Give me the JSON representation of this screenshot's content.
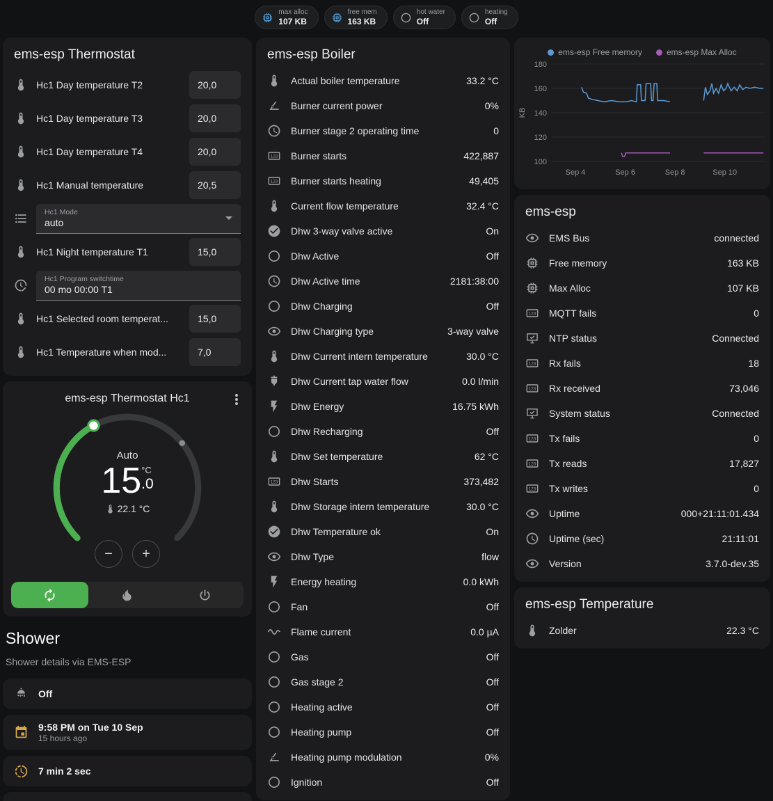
{
  "theme": {
    "accent": "#4caf50",
    "card_bg": "#1c1c1e"
  },
  "badges": [
    {
      "icon": "memory",
      "icon_class": "ic-blue",
      "label": "max alloc",
      "value": "107 KB"
    },
    {
      "icon": "memory",
      "icon_class": "ic-blue",
      "label": "free mem",
      "value": "163 KB"
    },
    {
      "icon": "circle",
      "icon_class": "",
      "label": "hot water",
      "value": "Off"
    },
    {
      "icon": "circle",
      "icon_class": "",
      "label": "heating",
      "value": "Off"
    }
  ],
  "thermostat": {
    "title": "ems-esp Thermostat",
    "rows": [
      {
        "type": "number",
        "icon": "thermometer",
        "label": "Hc1 Day temperature T2",
        "value": "20,0"
      },
      {
        "type": "number",
        "icon": "thermometer",
        "label": "Hc1 Day temperature T3",
        "value": "20,0"
      },
      {
        "type": "number",
        "icon": "thermometer",
        "label": "Hc1 Day temperature T4",
        "value": "20,0"
      },
      {
        "type": "number",
        "icon": "thermometer",
        "label": "Hc1 Manual temperature",
        "value": "20,5"
      },
      {
        "type": "select",
        "icon": "list",
        "label": "Hc1 Mode",
        "value": "auto"
      },
      {
        "type": "number",
        "icon": "thermometer",
        "label": "Hc1 Night temperature T1",
        "value": "15,0"
      },
      {
        "type": "text",
        "icon": "clock-edit",
        "label": "Hc1 Program switchtime",
        "value": "00 mo 00:00 T1"
      },
      {
        "type": "number",
        "icon": "thermometer",
        "label": "Hc1 Selected room temperat...",
        "value": "15,0"
      },
      {
        "type": "number",
        "icon": "thermometer",
        "label": "Hc1 Temperature when mod...",
        "value": "7,0"
      }
    ]
  },
  "hc1": {
    "title": "ems-esp Thermostat Hc1",
    "mode": "Auto",
    "target_int": "15",
    "target_dec": ".0",
    "unit": "°C",
    "current": "22.1 °C",
    "decrease_label": "−",
    "increase_label": "+",
    "modes": [
      {
        "icon": "autorenew",
        "cls": "active",
        "name": "auto"
      },
      {
        "icon": "flame",
        "cls": "",
        "name": "heat"
      },
      {
        "icon": "power",
        "cls": "",
        "name": "off"
      }
    ]
  },
  "shower": {
    "title": "Shower",
    "subtitle": "Shower details via EMS-ESP",
    "state": "Off",
    "timestamp": "9:58 PM on Tue 10 Sep",
    "timestamp_relative": "15 hours ago",
    "duration": "7 min 2 sec"
  },
  "boiler": {
    "title": "ems-esp Boiler",
    "rows": [
      {
        "icon": "thermometer",
        "label": "Actual boiler temperature",
        "value": "33.2 °C"
      },
      {
        "icon": "angle",
        "label": "Burner current power",
        "value": "0%"
      },
      {
        "icon": "clock",
        "label": "Burner stage 2 operating time",
        "value": "0"
      },
      {
        "icon": "counter",
        "label": "Burner starts",
        "value": "422,887"
      },
      {
        "icon": "counter",
        "label": "Burner starts heating",
        "value": "49,405"
      },
      {
        "icon": "thermometer",
        "label": "Current flow temperature",
        "value": "32.4 °C"
      },
      {
        "icon": "check-circle",
        "label": "Dhw 3-way valve active",
        "value": "On"
      },
      {
        "icon": "circle",
        "label": "Dhw Active",
        "value": "Off"
      },
      {
        "icon": "clock",
        "label": "Dhw Active time",
        "value": "2181:38:00"
      },
      {
        "icon": "circle",
        "label": "Dhw Charging",
        "value": "Off"
      },
      {
        "icon": "eye",
        "label": "Dhw Charging type",
        "value": "3-way valve"
      },
      {
        "icon": "thermometer",
        "label": "Dhw Current intern temperature",
        "value": "30.0 °C"
      },
      {
        "icon": "pump",
        "label": "Dhw Current tap water flow",
        "value": "0.0 l/min"
      },
      {
        "icon": "flash",
        "label": "Dhw Energy",
        "value": "16.75 kWh"
      },
      {
        "icon": "circle",
        "label": "Dhw Recharging",
        "value": "Off"
      },
      {
        "icon": "thermometer",
        "label": "Dhw Set temperature",
        "value": "62 °C"
      },
      {
        "icon": "counter",
        "label": "Dhw Starts",
        "value": "373,482"
      },
      {
        "icon": "thermometer",
        "label": "Dhw Storage intern temperature",
        "value": "30.0 °C"
      },
      {
        "icon": "check-circle",
        "label": "Dhw Temperature ok",
        "value": "On"
      },
      {
        "icon": "eye",
        "label": "Dhw Type",
        "value": "flow"
      },
      {
        "icon": "flash",
        "label": "Energy heating",
        "value": "0.0 kWh"
      },
      {
        "icon": "circle",
        "label": "Fan",
        "value": "Off"
      },
      {
        "icon": "current",
        "label": "Flame current",
        "value": "0.0 µA"
      },
      {
        "icon": "circle",
        "label": "Gas",
        "value": "Off"
      },
      {
        "icon": "circle",
        "label": "Gas stage 2",
        "value": "Off"
      },
      {
        "icon": "circle",
        "label": "Heating active",
        "value": "Off"
      },
      {
        "icon": "circle",
        "label": "Heating pump",
        "value": "Off"
      },
      {
        "icon": "angle",
        "label": "Heating pump modulation",
        "value": "0%"
      },
      {
        "icon": "circle",
        "label": "Ignition",
        "value": "Off"
      }
    ]
  },
  "emsesp": {
    "title": "ems-esp",
    "rows": [
      {
        "icon": "eye",
        "label": "EMS Bus",
        "value": "connected"
      },
      {
        "icon": "memory",
        "label": "Free memory",
        "value": "163 KB"
      },
      {
        "icon": "memory",
        "label": "Max Alloc",
        "value": "107 KB"
      },
      {
        "icon": "counter",
        "label": "MQTT fails",
        "value": "0"
      },
      {
        "icon": "monitor",
        "label": "NTP status",
        "value": "Connected"
      },
      {
        "icon": "counter",
        "label": "Rx fails",
        "value": "18"
      },
      {
        "icon": "counter",
        "label": "Rx received",
        "value": "73,046"
      },
      {
        "icon": "monitor",
        "label": "System status",
        "value": "Connected"
      },
      {
        "icon": "counter",
        "label": "Tx fails",
        "value": "0"
      },
      {
        "icon": "counter",
        "label": "Tx reads",
        "value": "17,827"
      },
      {
        "icon": "counter",
        "label": "Tx writes",
        "value": "0"
      },
      {
        "icon": "eye",
        "label": "Uptime",
        "value": "000+21:11:01.434"
      },
      {
        "icon": "clock",
        "label": "Uptime (sec)",
        "value": "21:11:01"
      },
      {
        "icon": "eye",
        "label": "Version",
        "value": "3.7.0-dev.35"
      }
    ]
  },
  "temperature": {
    "title": "ems-esp Temperature",
    "rows": [
      {
        "icon": "thermometer",
        "label": "Zolder",
        "value": "22.3 °C"
      }
    ]
  },
  "chart_data": {
    "type": "line",
    "title": "",
    "ylabel": "KB",
    "ylim": [
      100,
      180
    ],
    "yticks": [
      100,
      120,
      140,
      160,
      180
    ],
    "xlim": [
      3.05,
      11.6
    ],
    "xticks": [
      {
        "x": 4,
        "label": "Sep 4"
      },
      {
        "x": 6,
        "label": "Sep 6"
      },
      {
        "x": 8,
        "label": "Sep 8"
      },
      {
        "x": 10,
        "label": "Sep 10"
      }
    ],
    "grid": true,
    "legend_position": "top",
    "series": [
      {
        "name": "ems-esp Free memory",
        "color": "#5b9bd5",
        "unit": "KB",
        "segments": [
          [
            [
              4.25,
              161
            ],
            [
              4.32,
              157
            ],
            [
              4.45,
              156
            ],
            [
              4.52,
              152
            ],
            [
              4.68,
              151
            ],
            [
              4.9,
              150
            ],
            [
              5.15,
              149
            ],
            [
              5.45,
              150
            ],
            [
              5.75,
              149
            ],
            [
              6.05,
              149
            ],
            [
              6.25,
              150
            ],
            [
              6.45,
              149
            ],
            [
              6.48,
              163
            ],
            [
              6.62,
              163
            ],
            [
              6.65,
              150
            ],
            [
              6.8,
              150
            ],
            [
              6.84,
              164
            ],
            [
              7.02,
              164
            ],
            [
              7.06,
              150
            ],
            [
              7.12,
              150
            ],
            [
              7.16,
              164
            ],
            [
              7.27,
              164
            ],
            [
              7.3,
              150
            ],
            [
              7.55,
              150
            ],
            [
              7.8,
              149
            ]
          ],
          [
            [
              9.15,
              150
            ],
            [
              9.22,
              161
            ],
            [
              9.3,
              155
            ],
            [
              9.4,
              158
            ],
            [
              9.48,
              164
            ],
            [
              9.55,
              156
            ],
            [
              9.65,
              160
            ],
            [
              9.75,
              156
            ],
            [
              9.85,
              163
            ],
            [
              9.95,
              158
            ],
            [
              10.05,
              160
            ],
            [
              10.12,
              164
            ],
            [
              10.25,
              158
            ],
            [
              10.38,
              161
            ],
            [
              10.5,
              158
            ],
            [
              10.6,
              163
            ],
            [
              10.72,
              159
            ],
            [
              10.85,
              161
            ],
            [
              11.0,
              160
            ],
            [
              11.2,
              161
            ],
            [
              11.4,
              160
            ],
            [
              11.55,
              160
            ]
          ]
        ]
      },
      {
        "name": "ems-esp Max Alloc",
        "color": "#a35cb8",
        "unit": "KB",
        "segments": [
          [
            [
              5.85,
              107
            ],
            [
              5.9,
              104
            ],
            [
              5.97,
              104
            ],
            [
              6.02,
              107
            ],
            [
              6.5,
              107
            ],
            [
              7.1,
              107
            ],
            [
              7.8,
              107
            ]
          ],
          [
            [
              9.15,
              107
            ],
            [
              9.8,
              107
            ],
            [
              10.6,
              107
            ],
            [
              11.55,
              107
            ]
          ]
        ]
      }
    ]
  }
}
